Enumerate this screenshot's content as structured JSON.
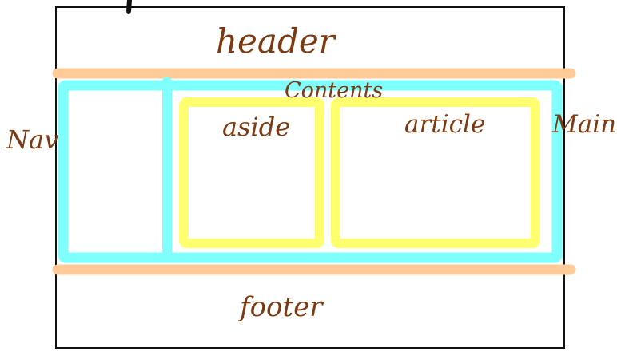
{
  "labels": {
    "header": "header",
    "contents": "Contents",
    "nav": "Nav",
    "aside": "aside",
    "article": "article",
    "main": "Main",
    "footer": "footer"
  },
  "colors": {
    "frame": "#111111",
    "header_footer_band": "#ffcc99",
    "contents_box": "#80ffff",
    "aside_article_box": "#ffff70",
    "handwriting": "#7b3a12"
  }
}
